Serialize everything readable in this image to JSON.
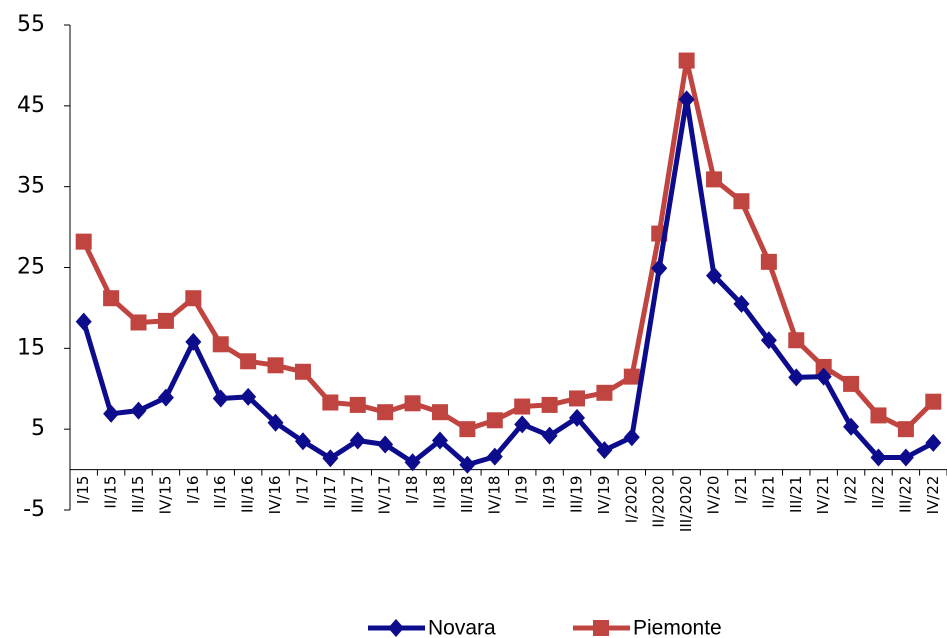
{
  "chart_data": {
    "type": "line",
    "categories": [
      "I/15",
      "II/15",
      "III/15",
      "IV/15",
      "I/16",
      "II/16",
      "III/16",
      "IV/16",
      "I/17",
      "II/17",
      "III/17",
      "IV/17",
      "I/18",
      "II/18",
      "III/18",
      "IV/18",
      "I/19",
      "II/19",
      "III/19",
      "IV/19",
      "I/2020",
      "II/2020",
      "III/2020",
      "IV/20",
      "I/21",
      "II/21",
      "III/21",
      "IV/21",
      "I/22",
      "II/22",
      "III/22",
      "IV/22"
    ],
    "series": [
      {
        "name": "Novara",
        "color": "#0c0c8c",
        "marker": "diamond",
        "values": [
          18.3,
          6.9,
          7.3,
          8.9,
          15.8,
          8.8,
          9.0,
          5.8,
          3.5,
          1.4,
          3.6,
          3.1,
          0.9,
          3.6,
          0.6,
          1.6,
          5.6,
          4.2,
          6.4,
          2.4,
          4.0,
          24.9,
          45.8,
          24.0,
          20.5,
          16.0,
          11.4,
          11.5,
          5.3,
          1.5,
          1.5,
          3.3
        ]
      },
      {
        "name": "Piemonte",
        "color": "#c0443f",
        "marker": "square",
        "values": [
          28.2,
          21.2,
          18.2,
          18.4,
          21.2,
          15.5,
          13.4,
          12.9,
          12.1,
          8.3,
          8.0,
          7.1,
          8.2,
          7.1,
          5.0,
          6.1,
          7.8,
          8.0,
          8.8,
          9.5,
          11.5,
          29.2,
          50.6,
          35.9,
          33.2,
          25.7,
          16.0,
          12.7,
          10.6,
          6.7,
          5.0,
          8.4
        ]
      }
    ],
    "ylim": [
      -5,
      55
    ],
    "yticks": [
      -5,
      5,
      15,
      25,
      35,
      45,
      55
    ],
    "grid": false,
    "legend": "bottom"
  }
}
